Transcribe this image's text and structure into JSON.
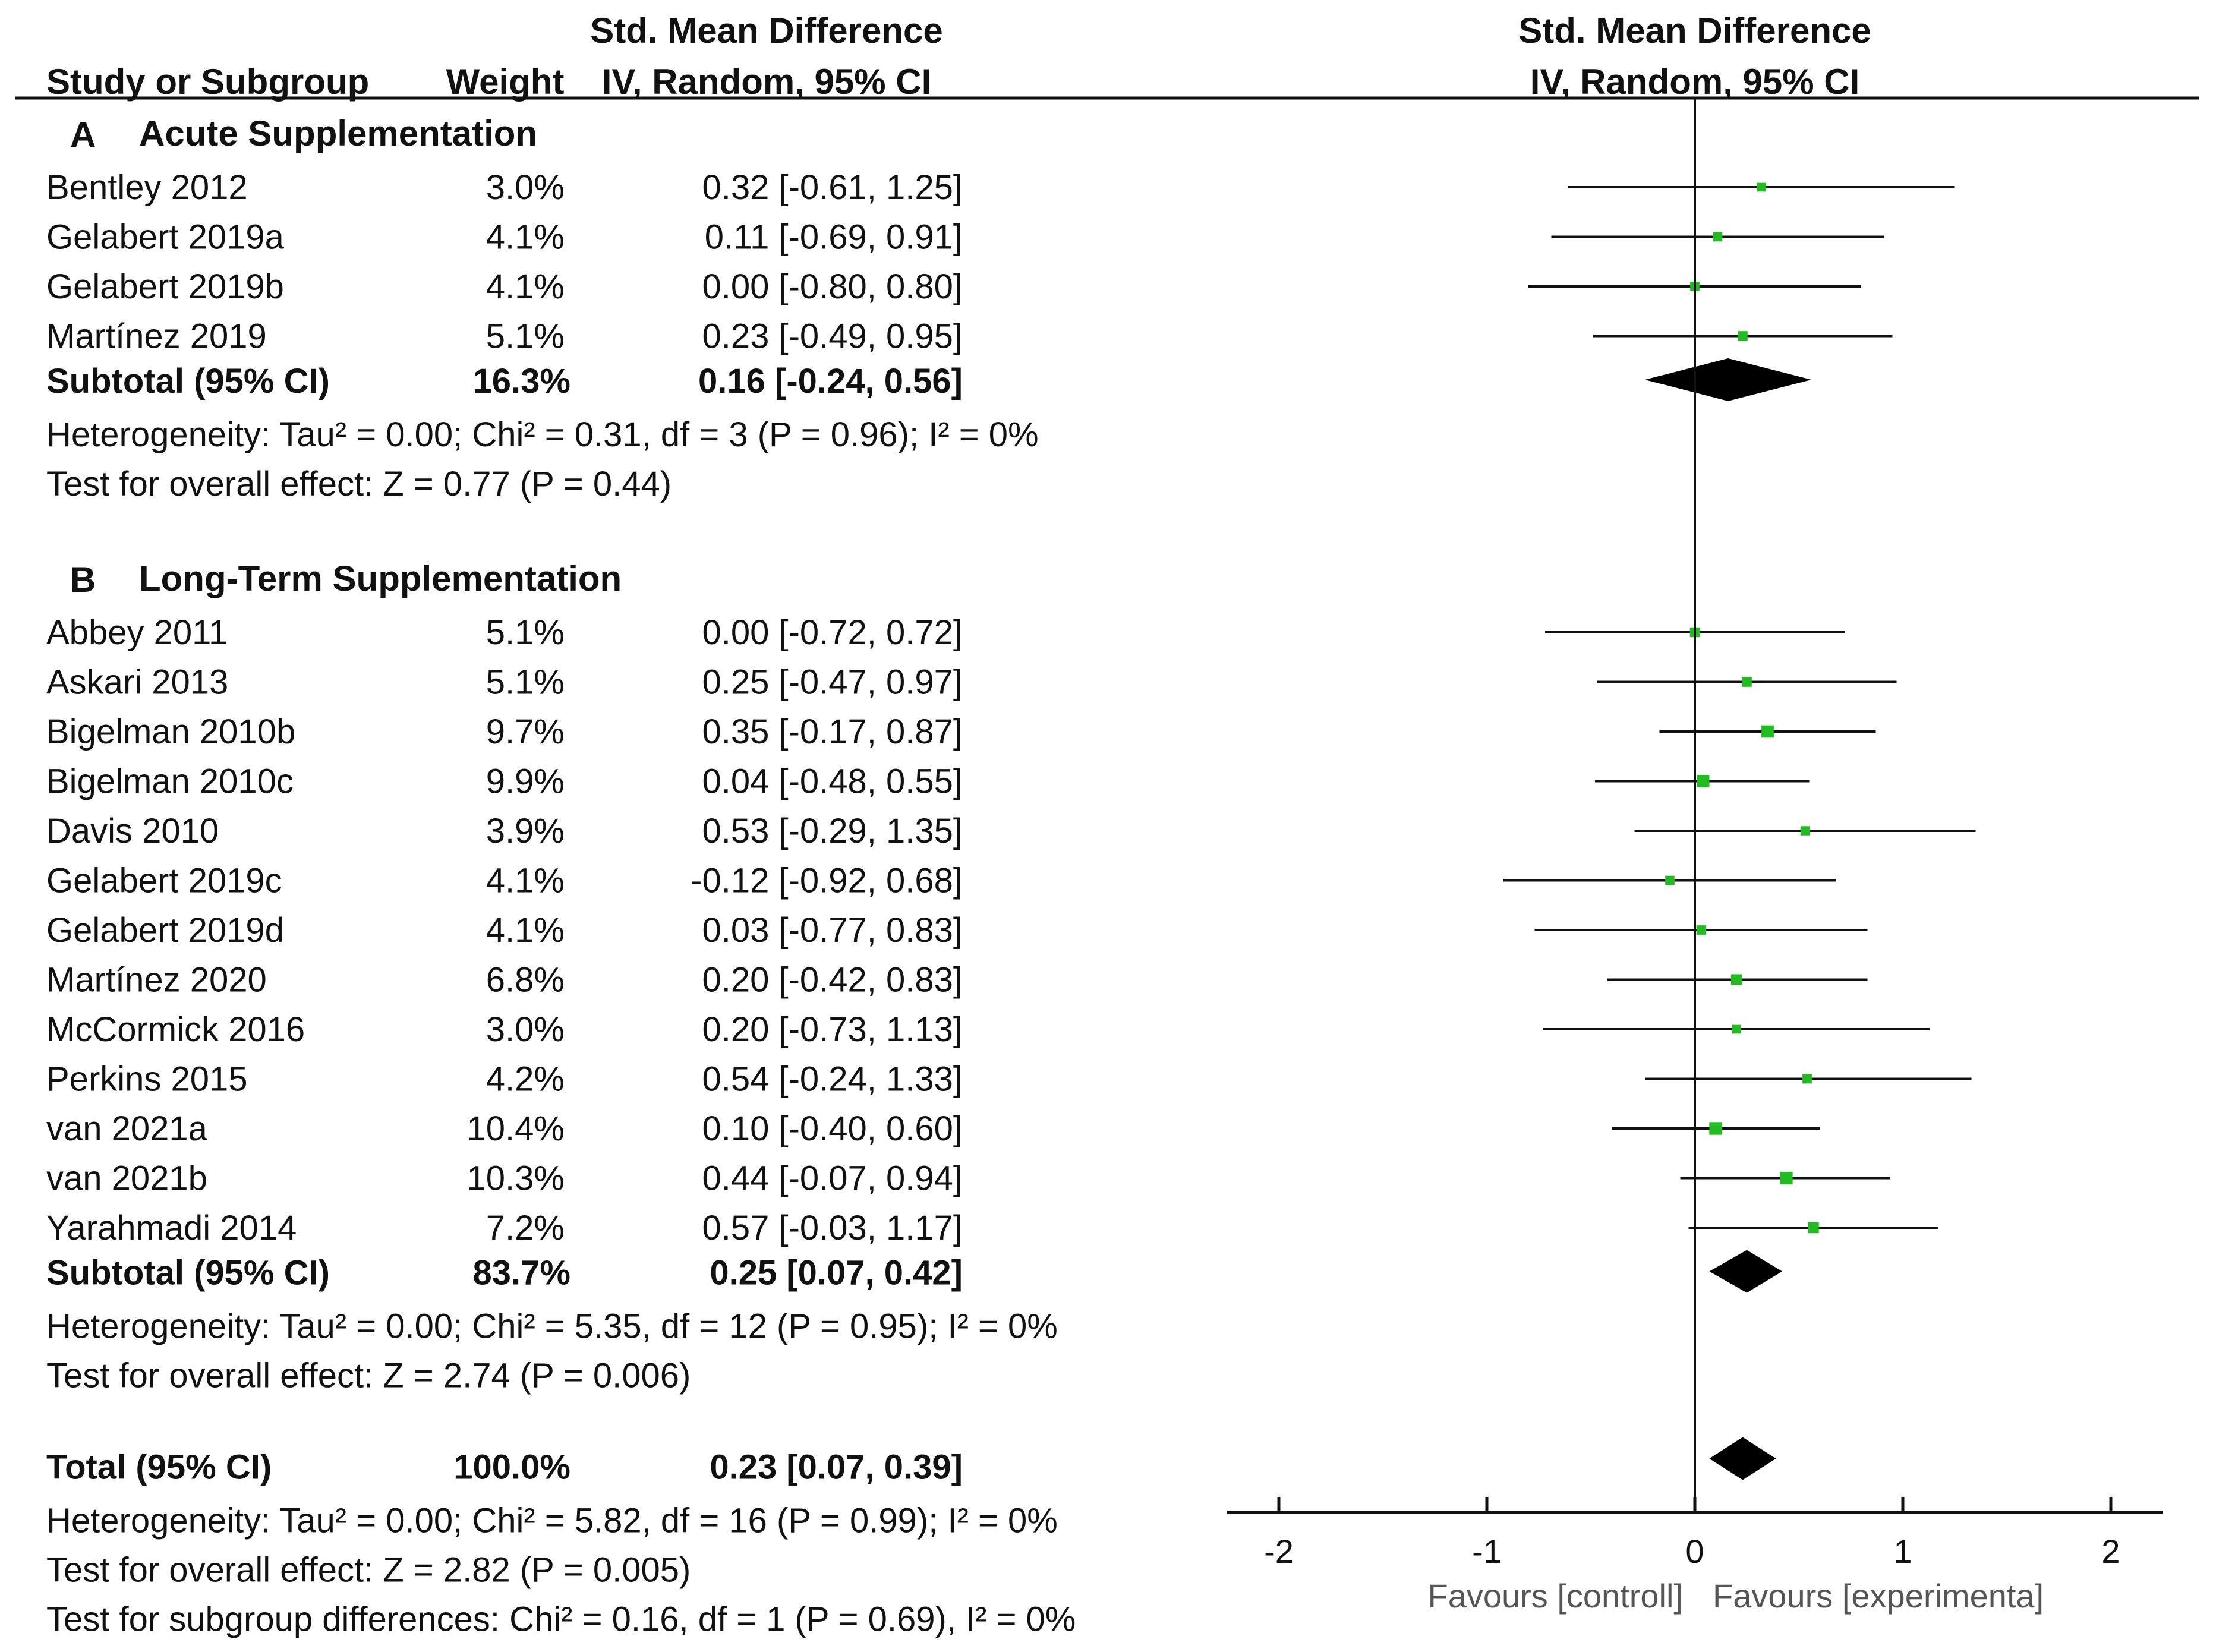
{
  "header": {
    "col_study": "Study or Subgroup",
    "col_weight": "Weight",
    "col_effect_line1": "Std. Mean Difference",
    "col_effect_line2": "IV, Random, 95% CI",
    "plot_line1": "Std. Mean Difference",
    "plot_line2": "IV, Random, 95% CI"
  },
  "chart_data": {
    "type": "forest",
    "xlim": [
      -2,
      2
    ],
    "x_ticks": [
      {
        "value": -2,
        "label": "-2"
      },
      {
        "value": -1,
        "label": "-1"
      },
      {
        "value": 0,
        "label": "0"
      },
      {
        "value": 1,
        "label": "1"
      },
      {
        "value": 2,
        "label": "2"
      }
    ],
    "favours_left": "Favours [controll]",
    "favours_right": "Favours [experimenta]",
    "marker_color": "#22bb22",
    "line_color": "#111111",
    "groups": [
      {
        "letter": "A",
        "title": "Acute Supplementation",
        "studies": [
          {
            "name": "Bentley 2012",
            "weight": "3.0%",
            "ci_text": "0.32 [-0.61, 1.25]",
            "est": 0.32,
            "lo": -0.61,
            "hi": 1.25
          },
          {
            "name": "Gelabert 2019a",
            "weight": "4.1%",
            "ci_text": "0.11 [-0.69, 0.91]",
            "est": 0.11,
            "lo": -0.69,
            "hi": 0.91
          },
          {
            "name": "Gelabert 2019b",
            "weight": "4.1%",
            "ci_text": "0.00 [-0.80, 0.80]",
            "est": 0.0,
            "lo": -0.8,
            "hi": 0.8
          },
          {
            "name": "Martínez 2019",
            "weight": "5.1%",
            "ci_text": "0.23 [-0.49, 0.95]",
            "est": 0.23,
            "lo": -0.49,
            "hi": 0.95
          }
        ],
        "subtotal": {
          "label": "Subtotal (95% CI)",
          "weight": "16.3%",
          "ci_text": "0.16 [-0.24, 0.56]",
          "est": 0.16,
          "lo": -0.24,
          "hi": 0.56
        },
        "heterogeneity": "Heterogeneity: Tau² = 0.00; Chi² = 0.31, df = 3 (P = 0.96); I² = 0%",
        "overall_effect": "Test for overall effect: Z = 0.77 (P = 0.44)"
      },
      {
        "letter": "B",
        "title": "Long-Term Supplementation",
        "studies": [
          {
            "name": "Abbey 2011",
            "weight": "5.1%",
            "ci_text": "0.00 [-0.72, 0.72]",
            "est": 0.0,
            "lo": -0.72,
            "hi": 0.72
          },
          {
            "name": "Askari 2013",
            "weight": "5.1%",
            "ci_text": "0.25 [-0.47, 0.97]",
            "est": 0.25,
            "lo": -0.47,
            "hi": 0.97
          },
          {
            "name": "Bigelman 2010b",
            "weight": "9.7%",
            "ci_text": "0.35 [-0.17, 0.87]",
            "est": 0.35,
            "lo": -0.17,
            "hi": 0.87
          },
          {
            "name": "Bigelman 2010c",
            "weight": "9.9%",
            "ci_text": "0.04 [-0.48, 0.55]",
            "est": 0.04,
            "lo": -0.48,
            "hi": 0.55
          },
          {
            "name": "Davis 2010",
            "weight": "3.9%",
            "ci_text": "0.53 [-0.29, 1.35]",
            "est": 0.53,
            "lo": -0.29,
            "hi": 1.35
          },
          {
            "name": "Gelabert 2019c",
            "weight": "4.1%",
            "ci_text": "-0.12 [-0.92, 0.68]",
            "est": -0.12,
            "lo": -0.92,
            "hi": 0.68
          },
          {
            "name": "Gelabert 2019d",
            "weight": "4.1%",
            "ci_text": "0.03 [-0.77, 0.83]",
            "est": 0.03,
            "lo": -0.77,
            "hi": 0.83
          },
          {
            "name": "Martínez 2020",
            "weight": "6.8%",
            "ci_text": "0.20 [-0.42, 0.83]",
            "est": 0.2,
            "lo": -0.42,
            "hi": 0.83
          },
          {
            "name": "McCormick 2016",
            "weight": "3.0%",
            "ci_text": "0.20 [-0.73, 1.13]",
            "est": 0.2,
            "lo": -0.73,
            "hi": 1.13
          },
          {
            "name": "Perkins 2015",
            "weight": "4.2%",
            "ci_text": "0.54 [-0.24, 1.33]",
            "est": 0.54,
            "lo": -0.24,
            "hi": 1.33
          },
          {
            "name": "van 2021a",
            "weight": "10.4%",
            "ci_text": "0.10 [-0.40, 0.60]",
            "est": 0.1,
            "lo": -0.4,
            "hi": 0.6
          },
          {
            "name": "van 2021b",
            "weight": "10.3%",
            "ci_text": "0.44 [-0.07, 0.94]",
            "est": 0.44,
            "lo": -0.07,
            "hi": 0.94
          },
          {
            "name": "Yarahmadi 2014",
            "weight": "7.2%",
            "ci_text": "0.57 [-0.03, 1.17]",
            "est": 0.57,
            "lo": -0.03,
            "hi": 1.17
          }
        ],
        "subtotal": {
          "label": "Subtotal (95% CI)",
          "weight": "83.7%",
          "ci_text": "0.25 [0.07, 0.42]",
          "est": 0.25,
          "lo": 0.07,
          "hi": 0.42
        },
        "heterogeneity": "Heterogeneity: Tau² = 0.00; Chi² = 5.35, df = 12 (P = 0.95); I² = 0%",
        "overall_effect": "Test for overall effect: Z = 2.74 (P = 0.006)"
      }
    ],
    "total": {
      "label": "Total (95% CI)",
      "weight": "100.0%",
      "ci_text": "0.23 [0.07, 0.39]",
      "est": 0.23,
      "lo": 0.07,
      "hi": 0.39,
      "heterogeneity": "Heterogeneity: Tau² = 0.00; Chi² = 5.82, df = 16 (P = 0.99); I² = 0%",
      "overall_effect": "Test for overall effect: Z = 2.82 (P = 0.005)",
      "subgroup_diff": "Test for subgroup differences: Chi² = 0.16, df = 1 (P = 0.69), I² = 0%"
    }
  }
}
